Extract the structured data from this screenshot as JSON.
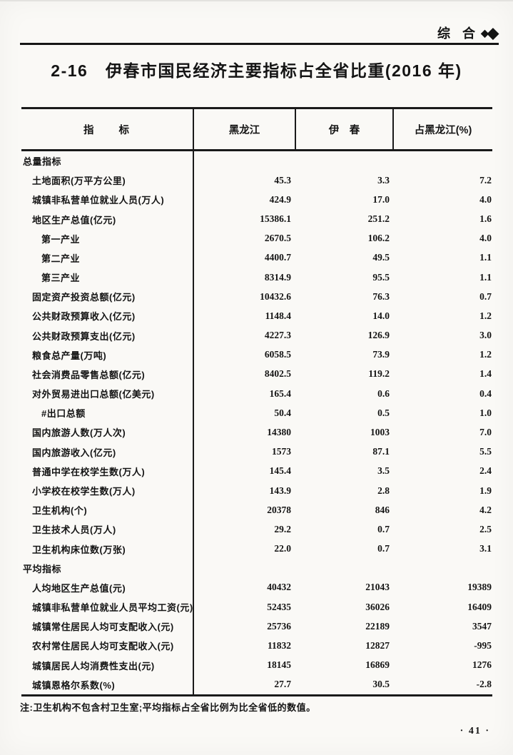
{
  "corner": {
    "label": "综 合",
    "diamond_small": "◆",
    "diamond_large": "◆"
  },
  "title": "2-16　伊春市国民经济主要指标占全省比重(2016 年)",
  "table": {
    "columns": {
      "indicator": "指　　标",
      "heilongjiang": "黑龙江",
      "yichun": "伊　春",
      "share": "占黑龙江(%)"
    },
    "rows": [
      {
        "type": "section",
        "label": "总量指标",
        "heilongjiang": "",
        "yichun": "",
        "share": ""
      },
      {
        "type": "item",
        "label": "土地面积(万平方公里)",
        "heilongjiang": "45.3",
        "yichun": "3.3",
        "share": "7.2"
      },
      {
        "type": "item",
        "label": "城镇非私营单位就业人员(万人)",
        "heilongjiang": "424.9",
        "yichun": "17.0",
        "share": "4.0"
      },
      {
        "type": "item",
        "label": "地区生产总值(亿元)",
        "heilongjiang": "15386.1",
        "yichun": "251.2",
        "share": "1.6"
      },
      {
        "type": "sub",
        "label": "第一产业",
        "heilongjiang": "2670.5",
        "yichun": "106.2",
        "share": "4.0"
      },
      {
        "type": "sub",
        "label": "第二产业",
        "heilongjiang": "4400.7",
        "yichun": "49.5",
        "share": "1.1"
      },
      {
        "type": "sub",
        "label": "第三产业",
        "heilongjiang": "8314.9",
        "yichun": "95.5",
        "share": "1.1"
      },
      {
        "type": "item",
        "label": "固定资产投资总额(亿元)",
        "heilongjiang": "10432.6",
        "yichun": "76.3",
        "share": "0.7"
      },
      {
        "type": "item",
        "label": "公共财政预算收入(亿元)",
        "heilongjiang": "1148.4",
        "yichun": "14.0",
        "share": "1.2"
      },
      {
        "type": "item",
        "label": "公共财政预算支出(亿元)",
        "heilongjiang": "4227.3",
        "yichun": "126.9",
        "share": "3.0"
      },
      {
        "type": "item",
        "label": "粮食总产量(万吨)",
        "heilongjiang": "6058.5",
        "yichun": "73.9",
        "share": "1.2"
      },
      {
        "type": "item",
        "label": "社会消费品零售总额(亿元)",
        "heilongjiang": "8402.5",
        "yichun": "119.2",
        "share": "1.4"
      },
      {
        "type": "item",
        "label": "对外贸易进出口总额(亿美元)",
        "heilongjiang": "165.4",
        "yichun": "0.6",
        "share": "0.4"
      },
      {
        "type": "sub",
        "label": "#出口总额",
        "heilongjiang": "50.4",
        "yichun": "0.5",
        "share": "1.0"
      },
      {
        "type": "item",
        "label": "国内旅游人数(万人次)",
        "heilongjiang": "14380",
        "yichun": "1003",
        "share": "7.0"
      },
      {
        "type": "item",
        "label": "国内旅游收入(亿元)",
        "heilongjiang": "1573",
        "yichun": "87.1",
        "share": "5.5"
      },
      {
        "type": "item",
        "label": "普通中学在校学生数(万人)",
        "heilongjiang": "145.4",
        "yichun": "3.5",
        "share": "2.4"
      },
      {
        "type": "item",
        "label": "小学校在校学生数(万人)",
        "heilongjiang": "143.9",
        "yichun": "2.8",
        "share": "1.9"
      },
      {
        "type": "item",
        "label": "卫生机构(个)",
        "heilongjiang": "20378",
        "yichun": "846",
        "share": "4.2"
      },
      {
        "type": "item",
        "label": "卫生技术人员(万人)",
        "heilongjiang": "29.2",
        "yichun": "0.7",
        "share": "2.5"
      },
      {
        "type": "item",
        "label": "卫生机构床位数(万张)",
        "heilongjiang": "22.0",
        "yichun": "0.7",
        "share": "3.1"
      },
      {
        "type": "section",
        "label": "平均指标",
        "heilongjiang": "",
        "yichun": "",
        "share": ""
      },
      {
        "type": "item",
        "label": "人均地区生产总值(元)",
        "heilongjiang": "40432",
        "yichun": "21043",
        "share": "19389"
      },
      {
        "type": "item",
        "label": "城镇非私营单位就业人员平均工资(元)",
        "heilongjiang": "52435",
        "yichun": "36026",
        "share": "16409"
      },
      {
        "type": "item",
        "label": "城镇常住居民人均可支配收入(元)",
        "heilongjiang": "25736",
        "yichun": "22189",
        "share": "3547"
      },
      {
        "type": "item",
        "label": "农村常住居民人均可支配收入(元)",
        "heilongjiang": "11832",
        "yichun": "12827",
        "share": "-995"
      },
      {
        "type": "item",
        "label": "城镇居民人均消费性支出(元)",
        "heilongjiang": "18145",
        "yichun": "16869",
        "share": "1276"
      },
      {
        "type": "item",
        "label": "城镇恩格尔系数(%)",
        "heilongjiang": "27.7",
        "yichun": "30.5",
        "share": "-2.8"
      }
    ]
  },
  "note": "注:卫生机构不包含村卫生室;平均指标占全省比例为比全省低的数值。",
  "page_number": "· 41 ·"
}
